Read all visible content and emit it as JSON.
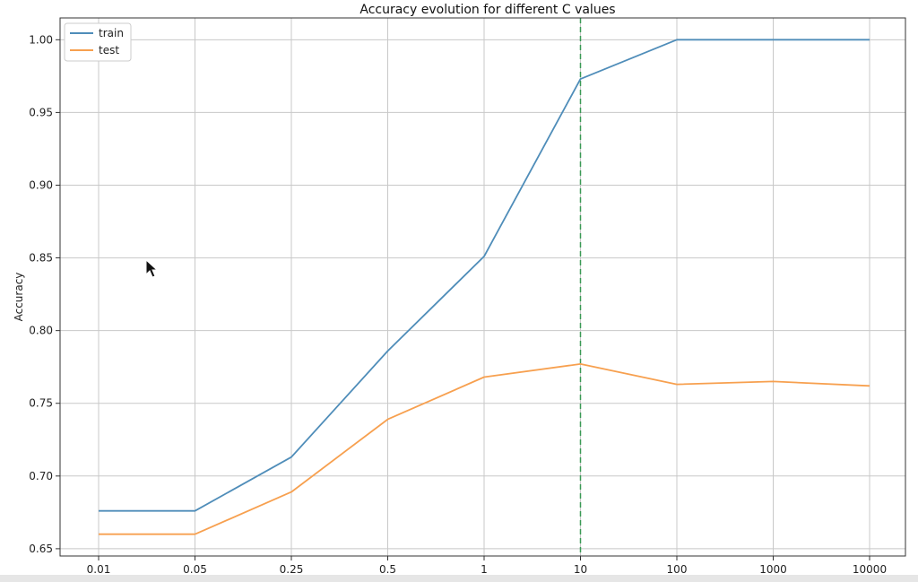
{
  "chart_data": {
    "type": "line",
    "title": "Accuracy evolution for different C values",
    "xlabel": "",
    "ylabel": "Accuracy",
    "categories": [
      "0.01",
      "0.05",
      "0.25",
      "0.5",
      "1",
      "10",
      "100",
      "1000",
      "10000"
    ],
    "ylim": [
      0.645,
      1.015
    ],
    "yticks": [
      "0.65",
      "0.70",
      "0.75",
      "0.80",
      "0.85",
      "0.90",
      "0.95",
      "1.00"
    ],
    "grid": true,
    "legend_position": "top-left",
    "series": [
      {
        "name": "train",
        "color": "#4f8db9",
        "values": [
          0.676,
          0.676,
          0.713,
          0.786,
          0.851,
          0.973,
          1.0,
          1.0,
          1.0
        ]
      },
      {
        "name": "test",
        "color": "#f7a04f",
        "values": [
          0.66,
          0.66,
          0.689,
          0.739,
          0.768,
          0.777,
          0.763,
          0.765,
          0.762
        ]
      }
    ],
    "vline": {
      "category": "10",
      "color": "#3a9a55",
      "style": "dashed"
    }
  }
}
